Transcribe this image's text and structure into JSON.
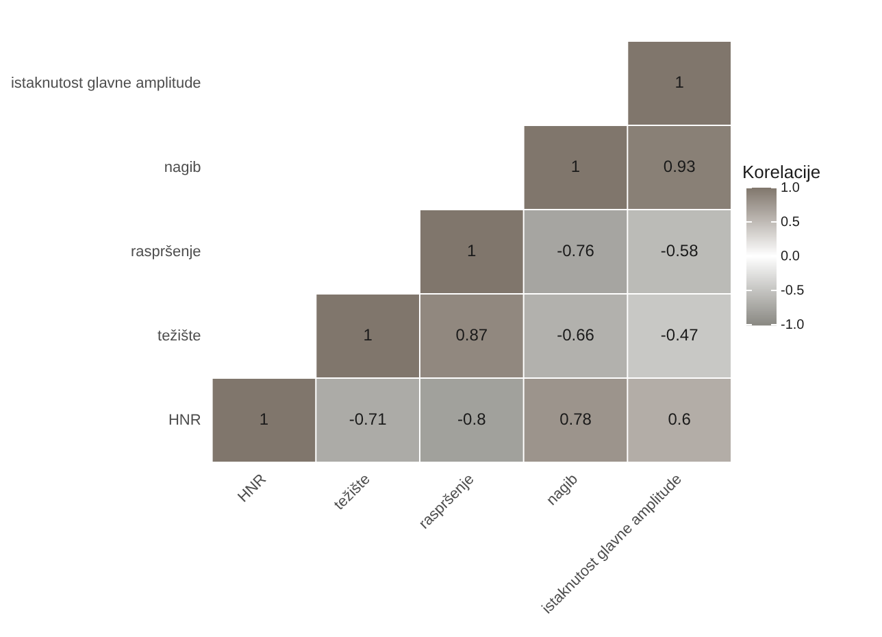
{
  "chart_data": {
    "type": "heatmap",
    "clabel": "Korelacije",
    "categories": [
      "HNR",
      "težište",
      "raspršenje",
      "nagib",
      "istaknutost glavne amplitude"
    ],
    "y_categories": [
      "istaknutost glavne amplitude",
      "nagib",
      "raspršenje",
      "težište",
      "HNR"
    ],
    "cells": [
      [
        null,
        null,
        null,
        null,
        1
      ],
      [
        null,
        null,
        null,
        1,
        0.93
      ],
      [
        null,
        null,
        1,
        -0.76,
        -0.58
      ],
      [
        null,
        1,
        0.87,
        -0.66,
        -0.47
      ],
      [
        1,
        -0.71,
        -0.8,
        0.78,
        0.6
      ]
    ],
    "data_labels": true,
    "clim": [
      -1,
      1
    ],
    "cticks": [
      {
        "value": 1,
        "label": "1.0"
      },
      {
        "value": 0.5,
        "label": "0.5"
      },
      {
        "value": 0,
        "label": "0.0"
      },
      {
        "value": -0.5,
        "label": "-0.5"
      },
      {
        "value": -1,
        "label": "-1.0"
      }
    ]
  }
}
